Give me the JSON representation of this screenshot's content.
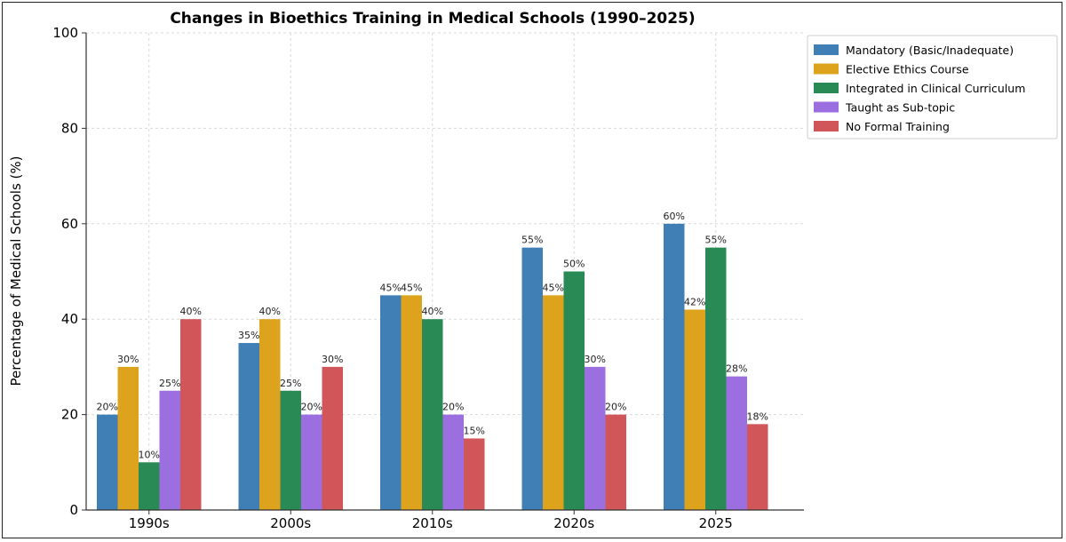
{
  "chart_data": {
    "type": "bar",
    "title": "Changes in Bioethics Training in Medical Schools (1990–2025)",
    "xlabel": "",
    "ylabel": "Percentage of Medical Schools (%)",
    "ylim": [
      0,
      100
    ],
    "yticks": [
      0,
      20,
      40,
      60,
      80,
      100
    ],
    "grid": true,
    "legend_position": "top-right",
    "categories": [
      "1990s",
      "2000s",
      "2010s",
      "2020s",
      "2025"
    ],
    "series": [
      {
        "name": "Mandatory (Basic/Inadequate)",
        "color": "#3f7fb5",
        "values": [
          20,
          35,
          45,
          55,
          60
        ],
        "labels": [
          "20%",
          "35%",
          "45%",
          "55%",
          "60%"
        ]
      },
      {
        "name": "Elective Ethics Course",
        "color": "#dea31c",
        "values": [
          30,
          40,
          45,
          45,
          42
        ],
        "labels": [
          "30%",
          "40%",
          "45%",
          "45%",
          "42%"
        ]
      },
      {
        "name": "Integrated in Clinical Curriculum",
        "color": "#2a8a55",
        "values": [
          10,
          25,
          40,
          50,
          55
        ],
        "labels": [
          "10%",
          "25%",
          "40%",
          "50%",
          "55%"
        ]
      },
      {
        "name": "Taught as Sub-topic",
        "color": "#9c6fe0",
        "values": [
          25,
          20,
          20,
          30,
          28
        ],
        "labels": [
          "25%",
          "20%",
          "20%",
          "30%",
          "28%"
        ]
      },
      {
        "name": "No Formal Training",
        "color": "#d1565a",
        "values": [
          40,
          30,
          15,
          20,
          18
        ],
        "labels": [
          "40%",
          "30%",
          "15%",
          "20%",
          "18%"
        ]
      }
    ]
  }
}
